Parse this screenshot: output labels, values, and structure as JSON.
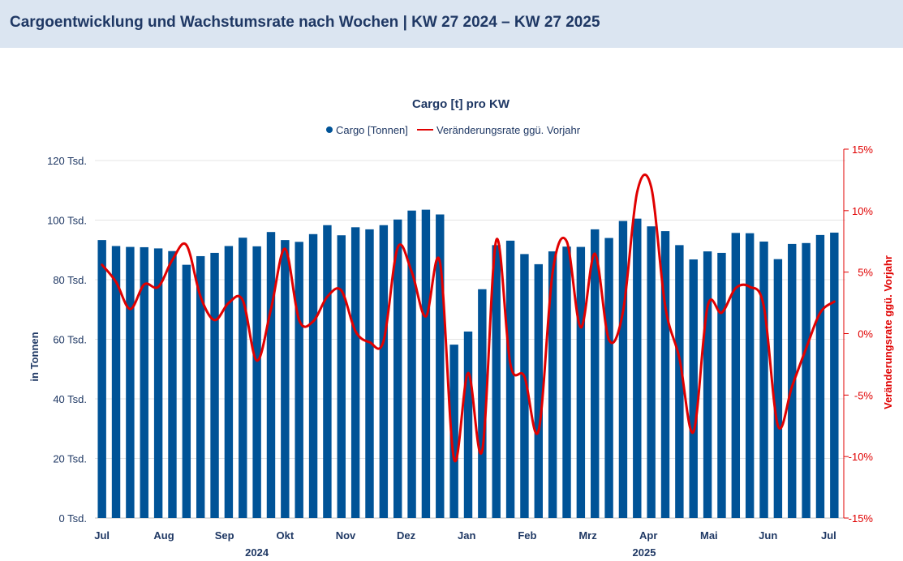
{
  "header": {
    "title": "Cargoentwicklung und Wachstumsrate nach Wochen | KW 27 2024 – KW 27 2025"
  },
  "chart_data": {
    "type": "bar",
    "title": "Cargo [t] pro KW",
    "ylabel": "in Tonnen",
    "y2label": "Veränderungsrate ggü. Vorjahr",
    "ylim": [
      0,
      120000
    ],
    "y2lim": [
      -15,
      15
    ],
    "yticks": [
      "0 Tsd.",
      "20 Tsd.",
      "40 Tsd.",
      "60 Tsd.",
      "80 Tsd.",
      "100 Tsd.",
      "120 Tsd."
    ],
    "y2ticks": [
      "-15%",
      "-10%",
      "-5%",
      "0%",
      "5%",
      "10%",
      "15%"
    ],
    "month_labels": [
      {
        "label": "Jul",
        "week_index": 0.5
      },
      {
        "label": "Aug",
        "week_index": 4.9
      },
      {
        "label": "Sep",
        "week_index": 9.2
      },
      {
        "label": "Okt",
        "week_index": 13.5
      },
      {
        "label": "Nov",
        "week_index": 17.8
      },
      {
        "label": "Dez",
        "week_index": 22.1
      },
      {
        "label": "Jan",
        "week_index": 26.4
      },
      {
        "label": "Feb",
        "week_index": 30.7
      },
      {
        "label": "Mrz",
        "week_index": 35.0
      },
      {
        "label": "Apr",
        "week_index": 39.3
      },
      {
        "label": "Mai",
        "week_index": 43.6
      },
      {
        "label": "Jun",
        "week_index": 47.8
      },
      {
        "label": "Jul",
        "week_index": 52.1
      }
    ],
    "year_labels": [
      {
        "label": "2024",
        "week_index": 11.5
      },
      {
        "label": "2025",
        "week_index": 39.0
      }
    ],
    "legend": {
      "position": "top-center"
    },
    "grid": true,
    "series": [
      {
        "name": "Cargo [Tonnen]",
        "type": "bar",
        "color": "#005397",
        "values": [
          93300,
          91300,
          91000,
          90900,
          90500,
          89600,
          85000,
          87900,
          89000,
          91300,
          94100,
          91200,
          96000,
          93300,
          92700,
          95300,
          98300,
          94900,
          97600,
          96900,
          98300,
          100200,
          103200,
          103500,
          101900,
          58200,
          62600,
          76800,
          91600,
          93100,
          88600,
          85200,
          89500,
          91100,
          91000,
          96900,
          94000,
          99700,
          100500,
          97900,
          96300,
          91600,
          86800,
          89500,
          89000,
          95700,
          95600,
          92800,
          86900,
          92000,
          92300,
          95000,
          95800
        ]
      },
      {
        "name": "Veränderungsrate ggü. Vorjahr",
        "type": "line",
        "color": "#e00000",
        "values": [
          5.6,
          4.2,
          2.0,
          4.0,
          3.8,
          6.0,
          7.2,
          3.0,
          1.1,
          2.5,
          2.7,
          -2.2,
          2.0,
          6.9,
          1.1,
          1.0,
          3.0,
          3.5,
          0.2,
          -0.7,
          -0.6,
          7.0,
          5.0,
          1.4,
          5.8,
          -10.2,
          -3.2,
          -9.5,
          7.6,
          -2.5,
          -3.5,
          -7.9,
          5.0,
          7.5,
          0.5,
          6.5,
          -0.5,
          1.8,
          11.5,
          11.9,
          2.2,
          -2.0,
          -8.0,
          2.2,
          1.7,
          3.7,
          3.8,
          2.2,
          -7.5,
          -4.3,
          -1.2,
          1.7,
          2.6
        ]
      }
    ]
  }
}
